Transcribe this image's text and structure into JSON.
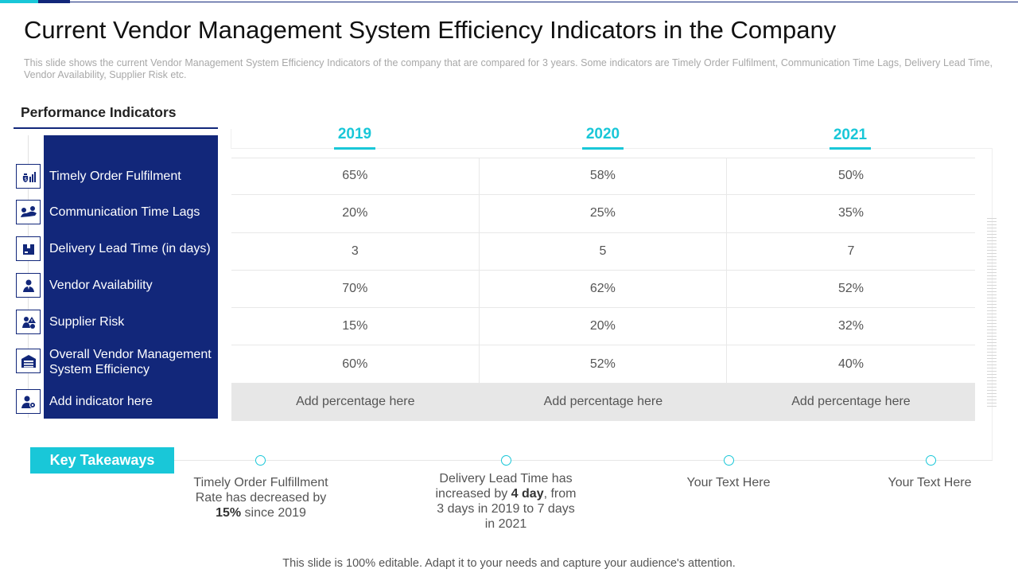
{
  "title": "Current Vendor Management System Efficiency Indicators in the Company",
  "subtitle": "This slide shows the current Vendor Management System Efficiency Indicators of the company that are compared for 3 years. Some indicators are Timely Order Fulfilment, Communication Time Lags, Delivery Lead Time, Vendor Availability, Supplier Risk etc.",
  "performance": {
    "heading": "Performance Indicators",
    "years": [
      "2019",
      "2020",
      "2021"
    ],
    "indicators": [
      {
        "label": "Timely Order Fulfilment",
        "icon": "money-bag-chart-icon",
        "values": [
          "65%",
          "58%",
          "50%"
        ]
      },
      {
        "label": "Communication Time Lags",
        "icon": "handshake-icon",
        "values": [
          "20%",
          "25%",
          "35%"
        ]
      },
      {
        "label": "Delivery Lead Time (in days)",
        "icon": "package-icon",
        "values": [
          "3",
          "5",
          "7"
        ]
      },
      {
        "label": "Vendor Availability",
        "icon": "person-icon",
        "values": [
          "70%",
          "62%",
          "52%"
        ]
      },
      {
        "label": "Supplier Risk",
        "icon": "people-alert-icon",
        "values": [
          "15%",
          "20%",
          "32%"
        ]
      },
      {
        "label": "Overall Vendor Management System Efficiency",
        "icon": "warehouse-icon",
        "values": [
          "60%",
          "52%",
          "40%"
        ]
      },
      {
        "label": "Add indicator here",
        "icon": "person-gear-icon",
        "values": [
          "Add percentage here",
          "Add percentage here",
          "Add percentage here"
        ]
      }
    ]
  },
  "takeaways": {
    "badge": "Key Takeaways",
    "items": [
      {
        "pre": "Timely Order Fulfillment Rate has decreased by ",
        "bold": "15%",
        "post": " since 2019"
      },
      {
        "pre": "Delivery Lead Time has increased by ",
        "bold": "4 day",
        "post": ", from 3 days in 2019 to 7 days in 2021"
      },
      {
        "pre": "Your Text Here",
        "bold": "",
        "post": ""
      },
      {
        "pre": "Your Text Here",
        "bold": "",
        "post": ""
      }
    ]
  },
  "footer": "This slide is 100% editable. Adapt it to your needs and capture your audience's attention.",
  "colors": {
    "navy": "#12277a",
    "cyan": "#19c7d8"
  }
}
